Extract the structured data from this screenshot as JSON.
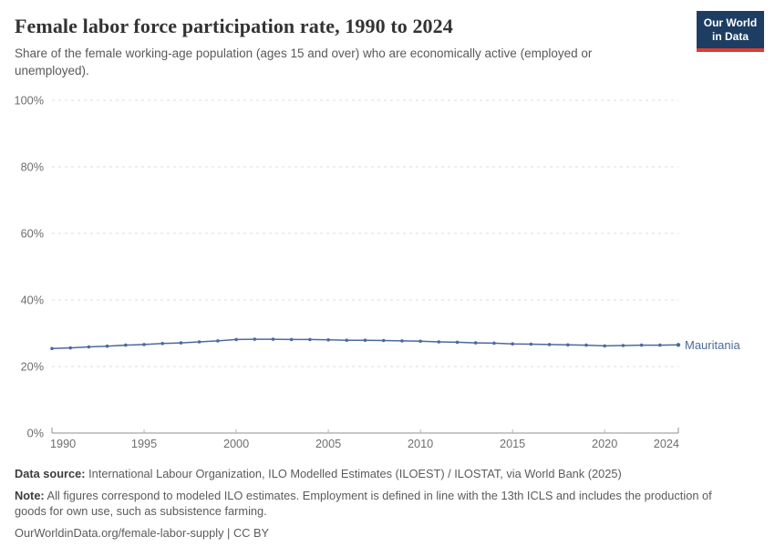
{
  "header": {
    "title": "Female labor force participation rate, 1990 to 2024",
    "subtitle": "Share of the female working-age population (ages 15 and over) who are economically active (employed or unemployed).",
    "logo": {
      "line1": "Our World",
      "line2": "in Data"
    }
  },
  "chart_data": {
    "type": "line",
    "title": "Female labor force participation rate, 1990 to 2024",
    "xlabel": "",
    "ylabel": "",
    "xlim": [
      1990,
      2024
    ],
    "ylim": [
      0,
      100
    ],
    "xticks": [
      1990,
      1995,
      2000,
      2005,
      2010,
      2015,
      2020,
      2024
    ],
    "yticks": [
      0,
      20,
      40,
      60,
      80,
      100
    ],
    "ytick_suffix": "%",
    "grid": "horizontal-dashed",
    "legend_position": "end-of-line-label",
    "categories": [
      1990,
      1991,
      1992,
      1993,
      1994,
      1995,
      1996,
      1997,
      1998,
      1999,
      2000,
      2001,
      2002,
      2003,
      2004,
      2005,
      2006,
      2007,
      2008,
      2009,
      2010,
      2011,
      2012,
      2013,
      2014,
      2015,
      2016,
      2017,
      2018,
      2019,
      2020,
      2021,
      2022,
      2023,
      2024
    ],
    "series": [
      {
        "name": "Mauritania",
        "color": "#4c6a9c",
        "values": [
          25.4,
          25.6,
          25.9,
          26.1,
          26.4,
          26.6,
          26.9,
          27.1,
          27.4,
          27.7,
          28.1,
          28.2,
          28.2,
          28.1,
          28.1,
          28.0,
          27.9,
          27.9,
          27.8,
          27.7,
          27.6,
          27.4,
          27.3,
          27.1,
          27.0,
          26.8,
          26.7,
          26.6,
          26.5,
          26.4,
          26.2,
          26.3,
          26.4,
          26.4,
          26.5
        ]
      }
    ]
  },
  "footer": {
    "source_label": "Data source:",
    "source_text": " International Labour Organization, ILO Modelled Estimates (ILOEST) / ILOSTAT, via World Bank (2025)",
    "note_label": "Note:",
    "note_text": " All figures correspond to modeled ILO estimates. Employment is defined in line with the 13th ICLS and includes the production of goods for own use, such as subsistence farming.",
    "link": "OurWorldinData.org/female-labor-supply",
    "separator": " | ",
    "license": "CC BY"
  },
  "colors": {
    "line": "#4c6a9c",
    "gridline": "#dcdcdc",
    "axis": "#8f8f8f",
    "tick": "#b5b5b5",
    "tick_label": "#6e6e6e",
    "logo_bg": "#1d3d63",
    "logo_stripe": "#dc3e32"
  }
}
